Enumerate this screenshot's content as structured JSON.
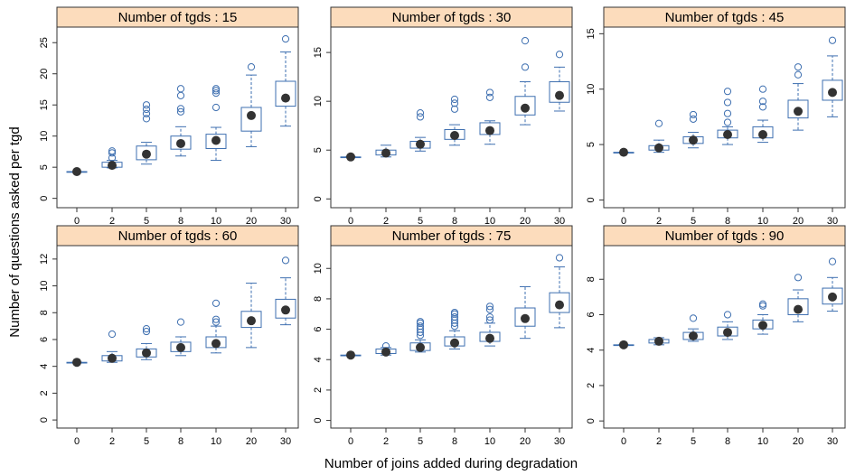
{
  "chart_data": {
    "type": "box",
    "ylabel": "Number of questions asked per tgd",
    "xlabel": "Number of joins added during degradation",
    "categories": [
      "0",
      "2",
      "5",
      "8",
      "10",
      "20",
      "30"
    ],
    "colors": {
      "box": "#3e6fb0",
      "median_dot": "#333333",
      "strip_fill": "#fcdcbc",
      "frame": "#333333"
    },
    "panels": [
      {
        "title": "Number of tgds : 15",
        "ylim": [
          -1.5,
          27.5
        ],
        "yticks": [
          0,
          5,
          10,
          15,
          20,
          25
        ],
        "boxes": [
          {
            "x": "0",
            "lo": 4.3,
            "q1": 4.3,
            "median": 4.3,
            "q3": 4.3,
            "hi": 4.3,
            "outliers": []
          },
          {
            "x": "2",
            "lo": 4.9,
            "q1": 5.0,
            "median": 5.3,
            "q3": 5.8,
            "hi": 6.1,
            "outliers": [
              6.5,
              7.3,
              7.6
            ]
          },
          {
            "x": "5",
            "lo": 5.5,
            "q1": 6.2,
            "median": 7.1,
            "q3": 8.4,
            "hi": 9.0,
            "outliers": [
              12.8,
              13.6,
              14.3,
              15.0
            ]
          },
          {
            "x": "8",
            "lo": 6.8,
            "q1": 7.9,
            "median": 8.8,
            "q3": 10.0,
            "hi": 11.5,
            "outliers": [
              13.9,
              14.4,
              16.5,
              17.6
            ]
          },
          {
            "x": "10",
            "lo": 6.1,
            "q1": 8.0,
            "median": 9.3,
            "q3": 10.3,
            "hi": 11.4,
            "outliers": [
              14.6,
              16.9,
              17.3,
              17.6
            ]
          },
          {
            "x": "20",
            "lo": 8.3,
            "q1": 10.8,
            "median": 13.3,
            "q3": 14.6,
            "hi": 19.8,
            "outliers": [
              21.1
            ]
          },
          {
            "x": "30",
            "lo": 11.6,
            "q1": 14.8,
            "median": 16.1,
            "q3": 18.8,
            "hi": 23.5,
            "outliers": [
              25.6
            ]
          }
        ]
      },
      {
        "title": "Number of tgds : 30",
        "ylim": [
          -0.9,
          17.6
        ],
        "yticks": [
          0,
          5,
          10,
          15
        ],
        "boxes": [
          {
            "x": "0",
            "lo": 4.3,
            "q1": 4.3,
            "median": 4.3,
            "q3": 4.3,
            "hi": 4.3,
            "outliers": []
          },
          {
            "x": "2",
            "lo": 4.3,
            "q1": 4.5,
            "median": 4.7,
            "q3": 5.0,
            "hi": 5.5,
            "outliers": []
          },
          {
            "x": "5",
            "lo": 4.9,
            "q1": 5.2,
            "median": 5.6,
            "q3": 5.9,
            "hi": 6.3,
            "outliers": [
              8.4,
              8.8
            ]
          },
          {
            "x": "8",
            "lo": 5.5,
            "q1": 6.1,
            "median": 6.5,
            "q3": 7.1,
            "hi": 7.6,
            "outliers": [
              9.2,
              9.8,
              10.2
            ]
          },
          {
            "x": "10",
            "lo": 5.6,
            "q1": 6.6,
            "median": 7.0,
            "q3": 7.8,
            "hi": 8.0,
            "outliers": [
              10.4,
              10.9
            ]
          },
          {
            "x": "20",
            "lo": 7.6,
            "q1": 8.6,
            "median": 9.3,
            "q3": 10.5,
            "hi": 12.0,
            "outliers": [
              13.5,
              16.2
            ]
          },
          {
            "x": "30",
            "lo": 9.0,
            "q1": 9.9,
            "median": 10.6,
            "q3": 12.0,
            "hi": 13.5,
            "outliers": [
              14.8
            ]
          }
        ]
      },
      {
        "title": "Number of tgds : 45",
        "ylim": [
          -0.7,
          15.6
        ],
        "yticks": [
          0,
          5,
          10,
          15
        ],
        "boxes": [
          {
            "x": "0",
            "lo": 4.3,
            "q1": 4.3,
            "median": 4.3,
            "q3": 4.3,
            "hi": 4.3,
            "outliers": []
          },
          {
            "x": "2",
            "lo": 4.3,
            "q1": 4.5,
            "median": 4.7,
            "q3": 4.9,
            "hi": 5.4,
            "outliers": [
              6.9
            ]
          },
          {
            "x": "5",
            "lo": 4.7,
            "q1": 5.1,
            "median": 5.4,
            "q3": 5.7,
            "hi": 6.1,
            "outliers": [
              7.3,
              7.7
            ]
          },
          {
            "x": "8",
            "lo": 5.0,
            "q1": 5.6,
            "median": 5.9,
            "q3": 6.3,
            "hi": 6.6,
            "outliers": [
              7.0,
              7.8,
              8.8,
              9.8
            ]
          },
          {
            "x": "10",
            "lo": 5.2,
            "q1": 5.6,
            "median": 5.9,
            "q3": 6.6,
            "hi": 7.2,
            "outliers": [
              8.4,
              8.9,
              10.0
            ]
          },
          {
            "x": "20",
            "lo": 6.3,
            "q1": 7.4,
            "median": 8.0,
            "q3": 9.0,
            "hi": 10.5,
            "outliers": [
              11.3,
              12.0
            ]
          },
          {
            "x": "30",
            "lo": 7.5,
            "q1": 9.0,
            "median": 9.7,
            "q3": 10.8,
            "hi": 13.0,
            "outliers": [
              14.4
            ]
          }
        ]
      },
      {
        "title": "Number of tgds : 60",
        "ylim": [
          -0.6,
          13.0
        ],
        "yticks": [
          0,
          2,
          4,
          6,
          8,
          10,
          12
        ],
        "boxes": [
          {
            "x": "0",
            "lo": 4.3,
            "q1": 4.3,
            "median": 4.3,
            "q3": 4.3,
            "hi": 4.3,
            "outliers": []
          },
          {
            "x": "2",
            "lo": 4.3,
            "q1": 4.4,
            "median": 4.6,
            "q3": 4.8,
            "hi": 5.1,
            "outliers": [
              6.4
            ]
          },
          {
            "x": "5",
            "lo": 4.5,
            "q1": 4.7,
            "median": 5.0,
            "q3": 5.3,
            "hi": 5.7,
            "outliers": [
              6.6,
              6.8
            ]
          },
          {
            "x": "8",
            "lo": 4.8,
            "q1": 5.1,
            "median": 5.4,
            "q3": 5.8,
            "hi": 6.2,
            "outliers": [
              7.3
            ]
          },
          {
            "x": "10",
            "lo": 5.0,
            "q1": 5.4,
            "median": 5.7,
            "q3": 6.2,
            "hi": 7.0,
            "outliers": [
              7.3,
              7.5,
              8.7
            ]
          },
          {
            "x": "20",
            "lo": 5.4,
            "q1": 6.9,
            "median": 7.4,
            "q3": 8.1,
            "hi": 10.2,
            "outliers": []
          },
          {
            "x": "30",
            "lo": 7.1,
            "q1": 7.6,
            "median": 8.2,
            "q3": 9.0,
            "hi": 10.6,
            "outliers": [
              11.9
            ]
          }
        ]
      },
      {
        "title": "Number of tgds : 75",
        "ylim": [
          -0.5,
          11.5
        ],
        "yticks": [
          0,
          2,
          4,
          6,
          8,
          10
        ],
        "boxes": [
          {
            "x": "0",
            "lo": 4.3,
            "q1": 4.3,
            "median": 4.3,
            "q3": 4.3,
            "hi": 4.3,
            "outliers": []
          },
          {
            "x": "2",
            "lo": 4.3,
            "q1": 4.4,
            "median": 4.5,
            "q3": 4.7,
            "hi": 4.8,
            "outliers": [
              4.9
            ]
          },
          {
            "x": "5",
            "lo": 4.5,
            "q1": 4.6,
            "median": 4.8,
            "q3": 5.1,
            "hi": 5.3,
            "outliers": [
              5.6,
              5.8,
              6.0,
              6.2,
              6.4,
              6.5
            ]
          },
          {
            "x": "8",
            "lo": 4.7,
            "q1": 4.9,
            "median": 5.1,
            "q3": 5.5,
            "hi": 5.9,
            "outliers": [
              6.2,
              6.4,
              6.6,
              6.8,
              7.0,
              7.1
            ]
          },
          {
            "x": "10",
            "lo": 4.9,
            "q1": 5.2,
            "median": 5.4,
            "q3": 5.8,
            "hi": 6.4,
            "outliers": [
              6.6,
              6.8,
              7.3,
              7.5
            ]
          },
          {
            "x": "20",
            "lo": 5.4,
            "q1": 6.2,
            "median": 6.7,
            "q3": 7.4,
            "hi": 8.8,
            "outliers": []
          },
          {
            "x": "30",
            "lo": 6.1,
            "q1": 7.1,
            "median": 7.6,
            "q3": 8.4,
            "hi": 10.1,
            "outliers": [
              10.7
            ]
          }
        ]
      },
      {
        "title": "Number of tgds : 90",
        "ylim": [
          -0.4,
          9.9
        ],
        "yticks": [
          0,
          2,
          4,
          6,
          8
        ],
        "boxes": [
          {
            "x": "0",
            "lo": 4.3,
            "q1": 4.3,
            "median": 4.3,
            "q3": 4.3,
            "hi": 4.3,
            "outliers": []
          },
          {
            "x": "2",
            "lo": 4.3,
            "q1": 4.4,
            "median": 4.5,
            "q3": 4.6,
            "hi": 4.7,
            "outliers": []
          },
          {
            "x": "5",
            "lo": 4.5,
            "q1": 4.6,
            "median": 4.8,
            "q3": 5.0,
            "hi": 5.2,
            "outliers": [
              5.8
            ]
          },
          {
            "x": "8",
            "lo": 4.6,
            "q1": 4.8,
            "median": 5.0,
            "q3": 5.3,
            "hi": 5.6,
            "outliers": [
              6.0
            ]
          },
          {
            "x": "10",
            "lo": 4.9,
            "q1": 5.2,
            "median": 5.4,
            "q3": 5.7,
            "hi": 6.0,
            "outliers": [
              6.5,
              6.6
            ]
          },
          {
            "x": "20",
            "lo": 5.6,
            "q1": 6.0,
            "median": 6.3,
            "q3": 6.9,
            "hi": 7.4,
            "outliers": [
              8.1
            ]
          },
          {
            "x": "30",
            "lo": 6.2,
            "q1": 6.6,
            "median": 7.0,
            "q3": 7.5,
            "hi": 8.1,
            "outliers": [
              9.0
            ]
          }
        ]
      }
    ]
  }
}
